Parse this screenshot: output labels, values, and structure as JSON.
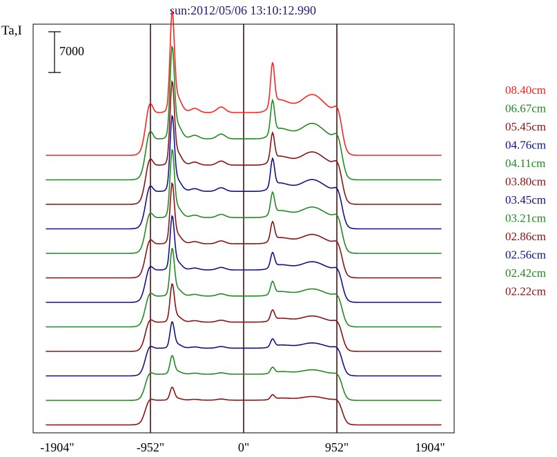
{
  "chart_data": {
    "type": "line",
    "title": "sun:2012/05/06 13:10:12.990",
    "ylabel": "Ta,I",
    "scale_bar_label": "7000",
    "xlim": [
      -2150,
      2150
    ],
    "x_ticks": [
      {
        "value": -1904,
        "label": "-1904\""
      },
      {
        "value": -952,
        "label": "-952\""
      },
      {
        "value": 0,
        "label": "0\""
      },
      {
        "value": 952,
        "label": "952\""
      },
      {
        "value": 1904,
        "label": "1904\""
      }
    ],
    "vertical_lines": [
      -952,
      0,
      952
    ],
    "series": [
      {
        "name": "08.40cm",
        "color": "#ff2020",
        "peak1": 1.0,
        "peak2": 1.0,
        "features": 1.0
      },
      {
        "name": "06.67cm",
        "color": "#1f8a1f",
        "peak1": 0.95,
        "peak2": 0.8,
        "features": 0.9
      },
      {
        "name": "05.45cm",
        "color": "#8b1010",
        "peak1": 0.9,
        "peak2": 0.7,
        "features": 0.8
      },
      {
        "name": "04.76cm",
        "color": "#10108b",
        "peak1": 0.85,
        "peak2": 0.75,
        "features": 0.75
      },
      {
        "name": "04.11cm",
        "color": "#1f8a1f",
        "peak1": 0.8,
        "peak2": 0.6,
        "features": 0.7
      },
      {
        "name": "03.80cm",
        "color": "#8b1010",
        "peak1": 0.75,
        "peak2": 0.55,
        "features": 0.65
      },
      {
        "name": "03.45cm",
        "color": "#10108b",
        "peak1": 0.7,
        "peak2": 0.45,
        "features": 0.6
      },
      {
        "name": "03.21cm",
        "color": "#1f8a1f",
        "peak1": 0.65,
        "peak2": 0.4,
        "features": 0.55
      },
      {
        "name": "02.86cm",
        "color": "#8b1010",
        "peak1": 0.55,
        "peak2": 0.35,
        "features": 0.5
      },
      {
        "name": "02.56cm",
        "color": "#10108b",
        "peak1": 0.4,
        "peak2": 0.28,
        "features": 0.45
      },
      {
        "name": "02.42cm",
        "color": "#1f8a1f",
        "peak1": 0.3,
        "peak2": 0.22,
        "features": 0.4
      },
      {
        "name": "02.22cm",
        "color": "#8b1010",
        "peak1": 0.22,
        "peak2": 0.18,
        "features": 0.35
      }
    ]
  }
}
